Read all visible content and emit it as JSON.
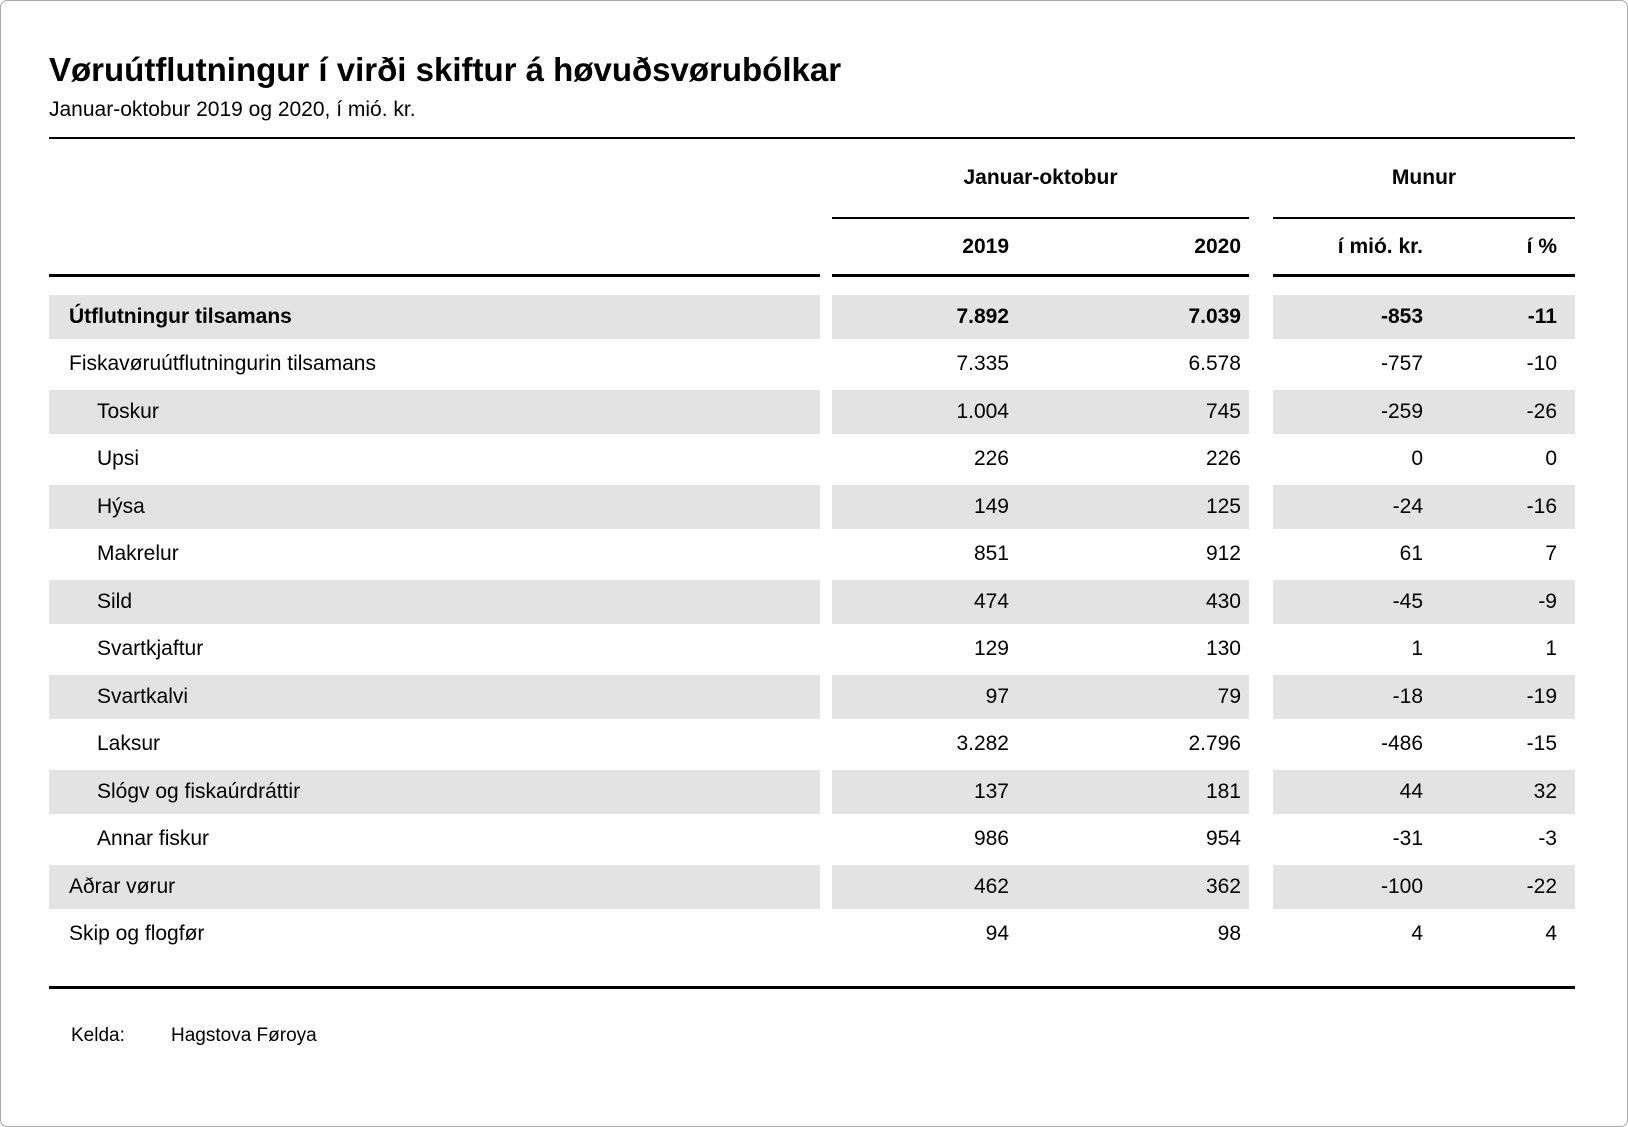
{
  "header": {
    "title": "Vøruútflutningur í virði skiftur á høvuðsvørubólkar",
    "subtitle": "Januar-oktobur 2019 og 2020, í mió. kr."
  },
  "table": {
    "col_groups": [
      {
        "label": "Januar-oktobur"
      },
      {
        "label": "Munur"
      }
    ],
    "columns": [
      "2019",
      "2020",
      "í mió. kr.",
      "í %"
    ],
    "rows": [
      {
        "label": "Útflutningur tilsamans",
        "level": 1,
        "bold": true,
        "values": [
          "7.892",
          "7.039",
          "-853",
          "-11"
        ]
      },
      {
        "label": "Fiskavøruútflutningurin tilsamans",
        "level": 1,
        "bold": false,
        "values": [
          "7.335",
          "6.578",
          "-757",
          "-10"
        ]
      },
      {
        "label": "Toskur",
        "level": 2,
        "bold": false,
        "values": [
          "1.004",
          "745",
          "-259",
          "-26"
        ]
      },
      {
        "label": "Upsi",
        "level": 2,
        "bold": false,
        "values": [
          "226",
          "226",
          "0",
          "0"
        ]
      },
      {
        "label": "Hýsa",
        "level": 2,
        "bold": false,
        "values": [
          "149",
          "125",
          "-24",
          "-16"
        ]
      },
      {
        "label": "Makrelur",
        "level": 2,
        "bold": false,
        "values": [
          "851",
          "912",
          "61",
          "7"
        ]
      },
      {
        "label": "Sild",
        "level": 2,
        "bold": false,
        "values": [
          "474",
          "430",
          "-45",
          "-9"
        ]
      },
      {
        "label": "Svartkjaftur",
        "level": 2,
        "bold": false,
        "values": [
          "129",
          "130",
          "1",
          "1"
        ]
      },
      {
        "label": "Svartkalvi",
        "level": 2,
        "bold": false,
        "values": [
          "97",
          "79",
          "-18",
          "-19"
        ]
      },
      {
        "label": "Laksur",
        "level": 2,
        "bold": false,
        "values": [
          "3.282",
          "2.796",
          "-486",
          "-15"
        ]
      },
      {
        "label": "Slógv og fiskaúrdráttir",
        "level": 2,
        "bold": false,
        "values": [
          "137",
          "181",
          "44",
          "32"
        ]
      },
      {
        "label": "Annar fiskur",
        "level": 2,
        "bold": false,
        "values": [
          "986",
          "954",
          "-31",
          "-3"
        ]
      },
      {
        "label": "Aðrar vørur",
        "level": 1,
        "bold": false,
        "values": [
          "462",
          "362",
          "-100",
          "-22"
        ]
      },
      {
        "label": "Skip og flogfør",
        "level": 1,
        "bold": false,
        "values": [
          "94",
          "98",
          "4",
          "4"
        ]
      }
    ]
  },
  "footer": {
    "source_label": "Kelda:",
    "source_value": "Hagstova Føroya"
  },
  "colors": {
    "stripe": "#e3e3e3",
    "rule": "#000000"
  }
}
